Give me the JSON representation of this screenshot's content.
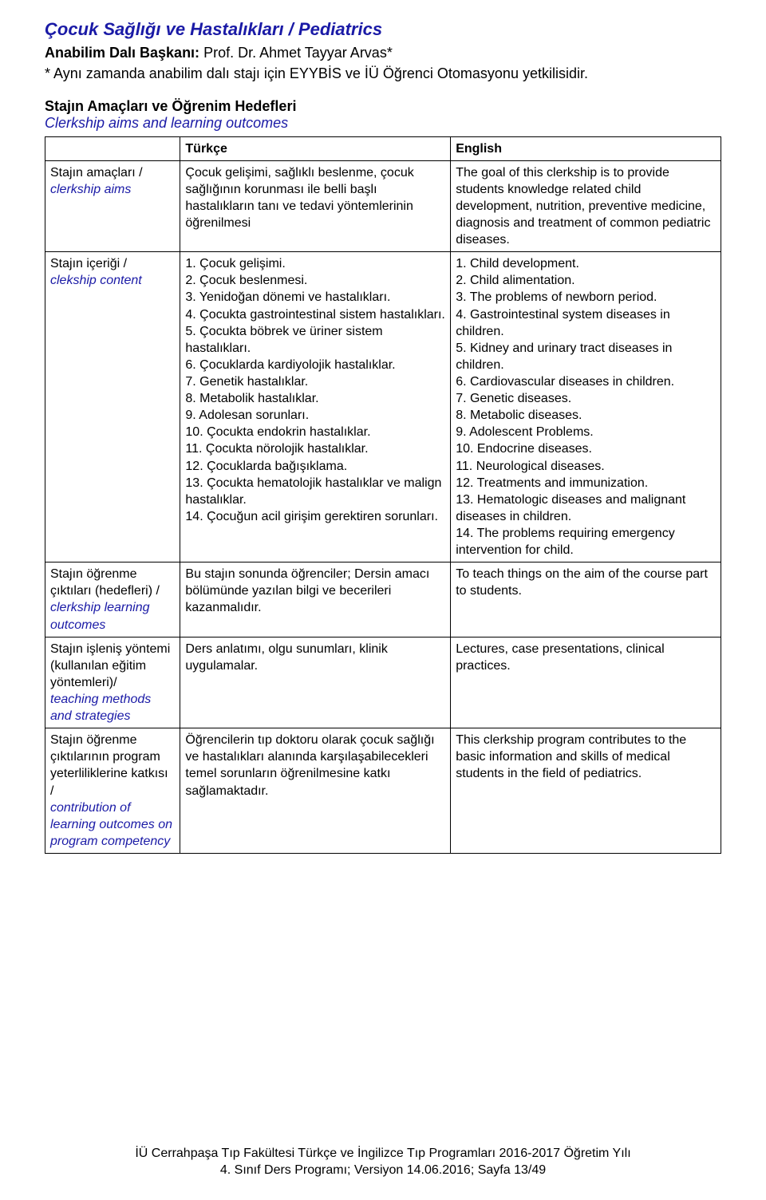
{
  "header": {
    "title": "Çocuk Sağlığı ve Hastalıkları / Pediatrics",
    "dept_label": "Anabilim Dalı Başkanı:",
    "dept_name": " Prof. Dr. Ahmet Tayyar Arvas*",
    "note": "* Aynı zamanda anabilim dalı stajı için EYYBİS ve İÜ Öğrenci Otomasyonu yetkilisidir."
  },
  "section": {
    "head": "Stajın Amaçları ve Öğrenim Hedefleri",
    "sub": "Clerkship aims and learning outcomes"
  },
  "tableHeaders": {
    "col1": "Türkçe",
    "col2": "English"
  },
  "rows": {
    "aims": {
      "tk_label": "Stajın amaçları /",
      "en_label": "clerkship aims",
      "tk": "Çocuk gelişimi, sağlıklı beslenme, çocuk sağlığının korunması ile belli başlı hastalıkların tanı ve tedavi yöntemlerinin öğrenilmesi",
      "en": "The goal of this clerkship is to provide students knowledge related child development, nutrition, preventive medicine, diagnosis and treatment of common pediatric diseases."
    },
    "content": {
      "tk_label": "Stajın içeriği /",
      "en_label": "clekship content",
      "tk": "1. Çocuk gelişimi.\n2. Çocuk beslenmesi.\n3. Yenidoğan dönemi ve hastalıkları.\n4. Çocukta gastrointestinal sistem hastalıkları.\n5. Çocukta böbrek ve üriner sistem hastalıkları.\n6. Çocuklarda kardiyolojik hastalıklar.\n7. Genetik hastalıklar.\n8. Metabolik hastalıklar.\n9. Adolesan sorunları.\n10. Çocukta endokrin hastalıklar.\n11. Çocukta nörolojik hastalıklar.\n12. Çocuklarda bağışıklama.\n13. Çocukta hematolojik hastalıklar ve malign hastalıklar.\n14. Çocuğun acil girişim gerektiren sorunları.",
      "en": "1. Child development.\n2. Child alimentation.\n3. The problems of newborn period.\n4. Gastrointestinal system diseases in children.\n5. Kidney and urinary tract diseases in children.\n6. Cardiovascular diseases in children.\n7. Genetic diseases.\n8. Metabolic diseases.\n9. Adolescent Problems.\n10. Endocrine diseases.\n11. Neurological diseases.\n12. Treatments and immunization.\n13. Hematologic diseases and malignant diseases in children.\n14. The problems requiring emergency intervention for child."
    },
    "outcomes": {
      "tk_label": "Stajın öğrenme çıktıları (hedefleri) /",
      "en_label": "clerkship learning outcomes",
      "tk": "Bu stajın sonunda öğrenciler; Dersin amacı bölümünde yazılan bilgi ve becerileri kazanmalıdır.",
      "en": "To teach things on the aim of the course part to students."
    },
    "methods": {
      "tk_label": "Stajın işleniş yöntemi (kullanılan eğitim yöntemleri)/",
      "en_label": "teaching methods and strategies",
      "tk": "Ders anlatımı, olgu sunumları, klinik uygulamalar.",
      "en": "Lectures, case presentations, clinical practices."
    },
    "contrib": {
      "tk_label": "Stajın öğrenme çıktılarının program yeterliliklerine katkısı /",
      "en_label": "contribution of learning outcomes on program competency",
      "tk": "Öğrencilerin tıp doktoru olarak çocuk sağlığı ve hastalıkları alanında karşılaşabilecekleri temel sorunların öğrenilmesine katkı sağlamaktadır.",
      "en": "This clerkship program contributes to the basic information and skills of medical students in the field of pediatrics."
    }
  },
  "footer": {
    "line1": "İÜ Cerrahpaşa Tıp Fakültesi Türkçe ve İngilizce Tıp Programları 2016-2017 Öğretim Yılı",
    "line2": "4. Sınıf Ders Programı; Versiyon 14.06.2016; Sayfa 13/49"
  }
}
